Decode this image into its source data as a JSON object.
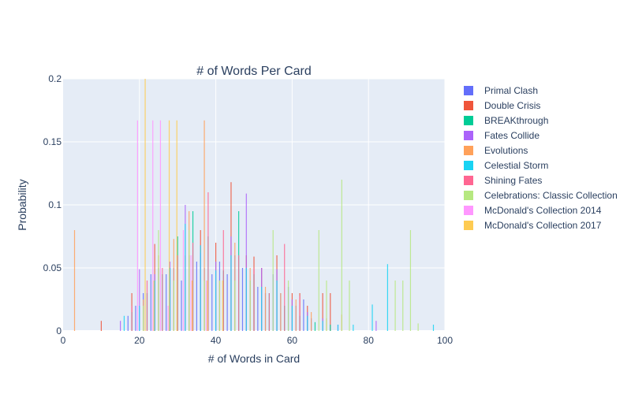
{
  "chart_data": {
    "type": "bar",
    "title": "# of Words Per Card",
    "xlabel": "# of Words in Card",
    "ylabel": "Probability",
    "xlim": [
      0,
      100
    ],
    "ylim": [
      0,
      0.2
    ],
    "xticks": [
      0,
      20,
      40,
      60,
      80,
      100
    ],
    "yticks": [
      0,
      0.05,
      0.1,
      0.15,
      0.2
    ],
    "ytick_labels": [
      "0",
      "0.05",
      "0.1",
      "0.15",
      "0.2"
    ],
    "grid": true,
    "background": "#e5ecf6",
    "legend_position": "right",
    "series": [
      {
        "name": "Primal Clash",
        "color": "#636efa",
        "x": [
          17,
          19,
          21,
          23,
          25,
          27,
          29,
          31,
          33,
          35,
          37,
          39,
          41,
          43,
          45,
          47,
          49,
          51,
          53,
          55,
          57,
          59,
          61,
          63,
          65
        ],
        "y": [
          0.012,
          0.02,
          0.03,
          0.045,
          0.05,
          0.045,
          0.05,
          0.04,
          0.06,
          0.055,
          0.05,
          0.045,
          0.055,
          0.045,
          0.06,
          0.05,
          0.04,
          0.035,
          0.03,
          0.045,
          0.03,
          0.035,
          0.02,
          0.025,
          0.01
        ]
      },
      {
        "name": "Double Crisis",
        "color": "#ef553b",
        "x": [
          10,
          18,
          24,
          28,
          32,
          36,
          40,
          44,
          48,
          50,
          52,
          56,
          60,
          62,
          64,
          68,
          70
        ],
        "y": [
          0.008,
          0.03,
          0.069,
          0.05,
          0.06,
          0.08,
          0.07,
          0.118,
          0.06,
          0.059,
          0.05,
          0.06,
          0.03,
          0.03,
          0.02,
          0.03,
          0.03
        ]
      },
      {
        "name": "BREAKthrough",
        "color": "#00cc96",
        "x": [
          18,
          22,
          26,
          30,
          34,
          38,
          42,
          46,
          50,
          54,
          58,
          62,
          66,
          70
        ],
        "y": [
          0.015,
          0.03,
          0.045,
          0.075,
          0.095,
          0.075,
          0.048,
          0.095,
          0.045,
          0.03,
          0.02,
          0.012,
          0.007,
          0.005
        ]
      },
      {
        "name": "Fates Collide",
        "color": "#ab63fa",
        "x": [
          15,
          20,
          24,
          28,
          32,
          36,
          40,
          44,
          48,
          52,
          56,
          60,
          64,
          68,
          72,
          82
        ],
        "y": [
          0.008,
          0.049,
          0.045,
          0.055,
          0.1,
          0.062,
          0.055,
          0.075,
          0.109,
          0.05,
          0.049,
          0.025,
          0.015,
          0.01,
          0.005,
          0.008
        ]
      },
      {
        "name": "Evolutions",
        "color": "#ffa15a",
        "x": [
          3,
          21,
          25,
          29,
          33,
          37,
          41,
          45,
          49,
          53,
          57,
          61,
          65,
          69,
          73
        ],
        "y": [
          0.08,
          0.025,
          0.06,
          0.073,
          0.095,
          0.167,
          0.04,
          0.07,
          0.05,
          0.035,
          0.03,
          0.025,
          0.015,
          0.01,
          0.013
        ]
      },
      {
        "name": "Celestial Storm",
        "color": "#19d3f3",
        "x": [
          16,
          20,
          24,
          28,
          32,
          36,
          40,
          44,
          48,
          52,
          56,
          60,
          64,
          68,
          72,
          76,
          81,
          85,
          97
        ],
        "y": [
          0.012,
          0.02,
          0.04,
          0.05,
          0.085,
          0.068,
          0.048,
          0.06,
          0.05,
          0.035,
          0.04,
          0.02,
          0.012,
          0.008,
          0.005,
          0.005,
          0.021,
          0.053,
          0.005
        ]
      },
      {
        "name": "Shining Fates",
        "color": "#ff6692",
        "x": [
          18,
          22,
          26,
          30,
          34,
          38,
          42,
          46,
          50,
          54,
          58,
          62
        ],
        "y": [
          0.02,
          0.04,
          0.05,
          0.06,
          0.07,
          0.11,
          0.08,
          0.06,
          0.05,
          0.03,
          0.069,
          0.028
        ]
      },
      {
        "name": "Celebrations: Classic Collection",
        "color": "#b6e880",
        "x": [
          21,
          25,
          29,
          33,
          37,
          41,
          45,
          49,
          55,
          59,
          67,
          69,
          73,
          75,
          87,
          89,
          91,
          93
        ],
        "y": [
          0.02,
          0.08,
          0.04,
          0.08,
          0.04,
          0.04,
          0.04,
          0.04,
          0.08,
          0.04,
          0.08,
          0.04,
          0.12,
          0.04,
          0.04,
          0.04,
          0.08,
          0.006
        ]
      },
      {
        "name": "McDonald's Collection 2014",
        "color": "#ff97ff",
        "x": [
          19.5,
          23.5,
          25.5,
          27.5,
          31.5,
          33.5,
          37.5
        ],
        "y": [
          0.167,
          0.167,
          0.167,
          0.02,
          0.08,
          0.06,
          0.04
        ]
      },
      {
        "name": "McDonald's Collection 2017",
        "color": "#fecb52",
        "x": [
          21.5,
          23.8,
          27.8,
          29.8,
          33.8,
          37.8,
          41.8
        ],
        "y": [
          0.2,
          0.04,
          0.167,
          0.167,
          0.04,
          0.04,
          0.04
        ]
      }
    ]
  }
}
